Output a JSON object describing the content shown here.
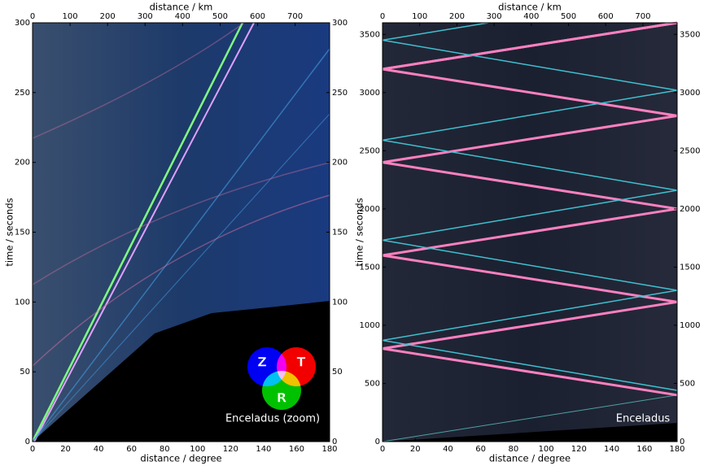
{
  "chart_data": [
    {
      "type": "image",
      "xlabel": "distance / degree",
      "x2label": "distance / km",
      "ylabel": "time / seconds",
      "xlim": [
        0,
        180
      ],
      "xticks": [
        0,
        20,
        40,
        60,
        80,
        100,
        120,
        140,
        160,
        180
      ],
      "x2lim": [
        0,
        792
      ],
      "x2ticks": [
        0,
        100,
        200,
        300,
        400,
        500,
        600,
        700
      ],
      "ylim": [
        0,
        300
      ],
      "yticks": [
        0,
        50,
        100,
        150,
        200,
        250,
        300
      ],
      "annotation": "Enceladus (zoom)",
      "legend_items": [
        {
          "name": "Z",
          "color": "#0000ff"
        },
        {
          "name": "T",
          "color": "#ff0000"
        },
        {
          "name": "R",
          "color": "#00cc00"
        }
      ]
    },
    {
      "type": "image",
      "xlabel": "distance / degree",
      "x2label": "distance / km",
      "ylabel": "time / seconds",
      "xlim": [
        0,
        180
      ],
      "xticks": [
        0,
        20,
        40,
        60,
        80,
        100,
        120,
        140,
        160,
        180
      ],
      "x2lim": [
        0,
        792
      ],
      "x2ticks": [
        0,
        100,
        200,
        300,
        400,
        500,
        600,
        700
      ],
      "ylim": [
        0,
        3600
      ],
      "yticks": [
        0,
        500,
        1000,
        1500,
        2000,
        2500,
        3000,
        3500
      ],
      "annotation": "Enceladus"
    }
  ]
}
